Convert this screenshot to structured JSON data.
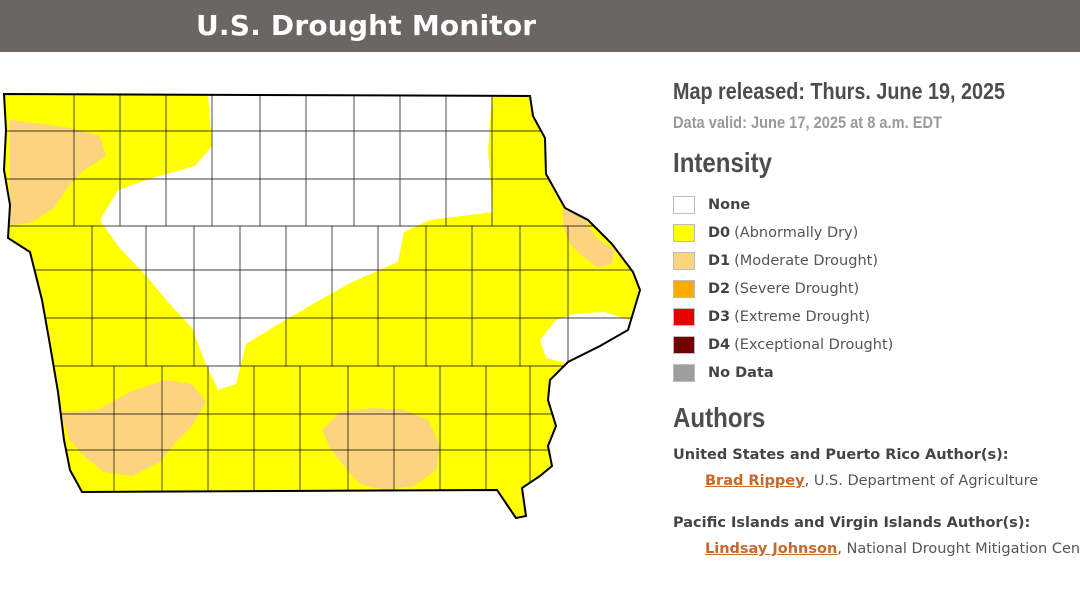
{
  "header": {
    "title": "U.S. Drought Monitor"
  },
  "map": {
    "colors": {
      "none": "#ffffff",
      "d0": "#ffff00",
      "d1": "#fcd37f",
      "d2": "#ffaa00",
      "d3": "#e60000",
      "d4": "#730000",
      "no_data": "#9e9e9e"
    }
  },
  "panel": {
    "released": "Map released: Thurs. June 19, 2025",
    "valid": "Data valid: June 17, 2025 at 8 a.m. EDT",
    "intensity_title": "Intensity",
    "legend": [
      {
        "code": "None",
        "desc": "",
        "color": "#ffffff"
      },
      {
        "code": "D0",
        "desc": "(Abnormally Dry)",
        "color": "#ffff00"
      },
      {
        "code": "D1",
        "desc": "(Moderate Drought)",
        "color": "#fcd37f"
      },
      {
        "code": "D2",
        "desc": "(Severe Drought)",
        "color": "#ffaa00"
      },
      {
        "code": "D3",
        "desc": "(Extreme Drought)",
        "color": "#e60000"
      },
      {
        "code": "D4",
        "desc": "(Exceptional Drought)",
        "color": "#730000"
      },
      {
        "code": "No Data",
        "desc": "",
        "color": "#9e9e9e"
      }
    ],
    "authors_title": "Authors",
    "author_groups": [
      {
        "label": "United States and Puerto Rico Author(s):",
        "name": "Brad Rippey",
        "org": ", U.S. Department of Agriculture"
      },
      {
        "label": "Pacific Islands and Virgin Islands Author(s):",
        "name": "Lindsay Johnson",
        "org": ", National Drought Mitigation Cen"
      }
    ]
  }
}
